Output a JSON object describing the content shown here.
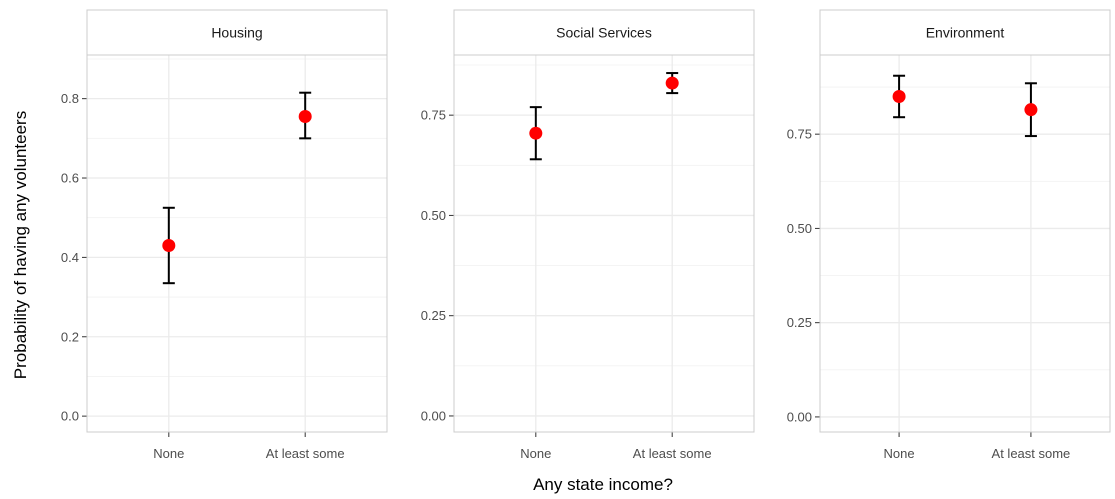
{
  "chart_data": {
    "type": "scatter",
    "subtype": "point-with-error-bars, faceted",
    "xlabel": "Any state income?",
    "ylabel": "Probability of having any volunteers",
    "categories": [
      "None",
      "At least some"
    ],
    "point_color": "#ff0000",
    "errorbar_color": "#000000",
    "panel_border_color": "#cccccc",
    "strip_fill": "#ffffff",
    "grid": true,
    "legend": "none",
    "facets": [
      {
        "title": "Housing",
        "ylim": [
          -0.04,
          0.91
        ],
        "yticks": [
          0.0,
          0.2,
          0.4,
          0.6,
          0.8
        ],
        "ytick_labels": [
          "0.0",
          "0.2",
          "0.4",
          "0.6",
          "0.8"
        ],
        "points": [
          {
            "x": "None",
            "y": 0.43,
            "lower": 0.335,
            "upper": 0.525
          },
          {
            "x": "At least some",
            "y": 0.755,
            "lower": 0.7,
            "upper": 0.815
          }
        ]
      },
      {
        "title": "Social Services",
        "ylim": [
          -0.04,
          0.9
        ],
        "yticks": [
          0.0,
          0.25,
          0.5,
          0.75
        ],
        "ytick_labels": [
          "0.00",
          "0.25",
          "0.50",
          "0.75"
        ],
        "points": [
          {
            "x": "None",
            "y": 0.705,
            "lower": 0.64,
            "upper": 0.77
          },
          {
            "x": "At least some",
            "y": 0.83,
            "lower": 0.805,
            "upper": 0.855
          }
        ]
      },
      {
        "title": "Environment",
        "ylim": [
          -0.04,
          0.96
        ],
        "yticks": [
          0.0,
          0.25,
          0.5,
          0.75
        ],
        "ytick_labels": [
          "0.00",
          "0.25",
          "0.50",
          "0.75"
        ],
        "points": [
          {
            "x": "None",
            "y": 0.85,
            "lower": 0.795,
            "upper": 0.905
          },
          {
            "x": "At least some",
            "y": 0.815,
            "lower": 0.745,
            "upper": 0.885
          }
        ]
      }
    ]
  }
}
